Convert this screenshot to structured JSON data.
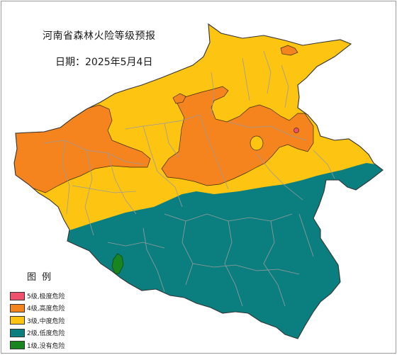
{
  "map": {
    "title": "河南省森林火险等级预报",
    "date": "日期：2025年5月4日",
    "colors": {
      "level5": "#f0506e",
      "level4": "#f5841f",
      "level3": "#fdc512",
      "level2": "#0b7f7f",
      "level1": "#18851e",
      "border": "#333333",
      "county_lines": "#9b9b9b"
    }
  },
  "legend": {
    "title": "图例",
    "items": [
      {
        "label": "5级,极度危险",
        "color": "#f0506e"
      },
      {
        "label": "4级,高度危险",
        "color": "#f5841f"
      },
      {
        "label": "3级,中度危险",
        "color": "#fdc512"
      },
      {
        "label": "2级,低度危险",
        "color": "#0b7f7f"
      },
      {
        "label": "1级,没有危险",
        "color": "#18851e"
      }
    ]
  }
}
